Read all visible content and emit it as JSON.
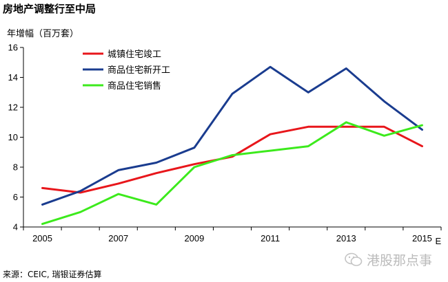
{
  "title": "房地产调整行至中局",
  "source": "来源：CEIC, 瑞银证券估算",
  "watermark": {
    "text": "港股那点事",
    "icon": "wechat-icon"
  },
  "chart_data": {
    "type": "line",
    "ylabel": "年增幅（百万套）",
    "x": [
      2005,
      2006,
      2007,
      2008,
      2009,
      2010,
      2011,
      2012,
      2013,
      2014,
      2015
    ],
    "xticks": [
      {
        "value": 2005,
        "label": "2005"
      },
      {
        "value": 2007,
        "label": "2007"
      },
      {
        "value": 2009,
        "label": "2009"
      },
      {
        "value": 2011,
        "label": "2011"
      },
      {
        "value": 2013,
        "label": "2013"
      },
      {
        "value": 2015,
        "label": "2015"
      }
    ],
    "x_suffix": "E",
    "ylim": [
      4,
      16
    ],
    "yticks": [
      4,
      6,
      8,
      10,
      12,
      14,
      16
    ],
    "grid": false,
    "legend_position": "top-left",
    "series": [
      {
        "name": "城镇住宅竣工",
        "color": "#e8161b",
        "values": [
          6.6,
          6.3,
          6.9,
          7.6,
          8.2,
          8.7,
          10.2,
          10.7,
          10.7,
          10.7,
          9.4
        ]
      },
      {
        "name": "商品住宅新开工",
        "color": "#1a3c8f",
        "values": [
          5.5,
          6.4,
          7.8,
          8.3,
          9.3,
          12.9,
          14.7,
          13.0,
          14.6,
          12.4,
          10.5
        ]
      },
      {
        "name": "商品住宅销售",
        "color": "#3cea1c",
        "values": [
          4.2,
          5.0,
          6.2,
          5.5,
          8.0,
          8.8,
          9.1,
          9.4,
          11.0,
          10.1,
          10.8
        ]
      }
    ]
  }
}
